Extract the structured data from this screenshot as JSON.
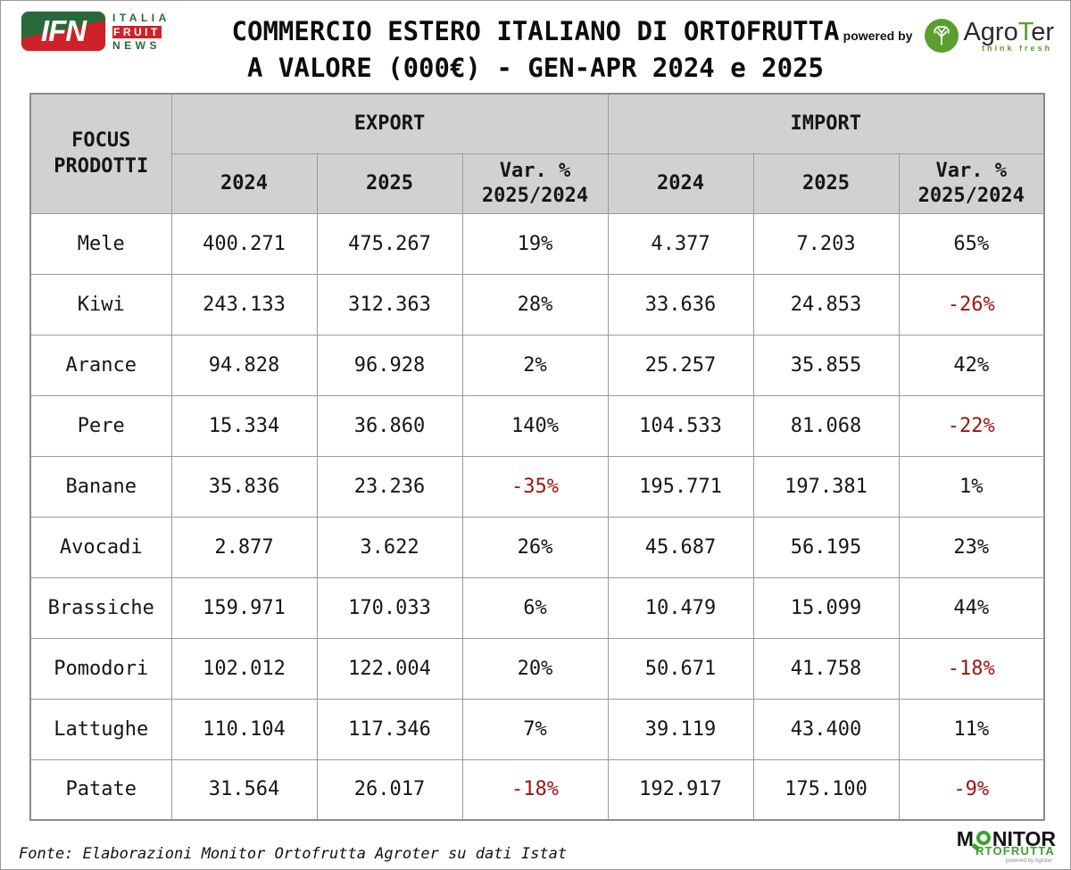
{
  "header": {
    "title_line1": "COMMERCIO ESTERO ITALIANO DI ORTOFRUTTA",
    "title_line2": "A VALORE (000€) - GEN-APR 2024 e 2025",
    "ifn_logo": {
      "acronym": "IFN",
      "word1": "ITALIA",
      "word2": "FRUIT",
      "word3": "NEWS"
    },
    "powered_by": "powered by",
    "agroter": {
      "name_pre": "Agro",
      "name_t": "T",
      "name_post": "er",
      "tagline": "think fresh",
      "tree_icon": "tree-icon"
    }
  },
  "colors": {
    "negative": "#9d1310",
    "header_bg": "#d3d0d0",
    "ifn_green": "#27693a",
    "ifn_red": "#cf2127",
    "agroter_green": "#5a9e2f",
    "monitor_green": "#3aa32b"
  },
  "table": {
    "corner_line1": "FOCUS",
    "corner_line2": "PRODOTTI",
    "group_export": "EXPORT",
    "group_import": "IMPORT",
    "sub": {
      "y2024": "2024",
      "y2025": "2025",
      "var_line1": "Var. %",
      "var_line2": "2025/2024"
    },
    "rows": [
      {
        "product": "Mele",
        "export": [
          "400.271",
          "475.267",
          "19%"
        ],
        "import": [
          "4.377",
          "7.203",
          "65%"
        ]
      },
      {
        "product": "Kiwi",
        "export": [
          "243.133",
          "312.363",
          "28%"
        ],
        "import": [
          "33.636",
          "24.853",
          "-26%"
        ]
      },
      {
        "product": "Arance",
        "export": [
          "94.828",
          "96.928",
          "2%"
        ],
        "import": [
          "25.257",
          "35.855",
          "42%"
        ]
      },
      {
        "product": "Pere",
        "export": [
          "15.334",
          "36.860",
          "140%"
        ],
        "import": [
          "104.533",
          "81.068",
          "-22%"
        ]
      },
      {
        "product": "Banane",
        "export": [
          "35.836",
          "23.236",
          "-35%"
        ],
        "import": [
          "195.771",
          "197.381",
          "1%"
        ]
      },
      {
        "product": "Avocadi",
        "export": [
          "2.877",
          "3.622",
          "26%"
        ],
        "import": [
          "45.687",
          "56.195",
          "23%"
        ]
      },
      {
        "product": "Brassiche",
        "export": [
          "159.971",
          "170.033",
          "6%"
        ],
        "import": [
          "10.479",
          "15.099",
          "44%"
        ]
      },
      {
        "product": "Pomodori",
        "export": [
          "102.012",
          "122.004",
          "20%"
        ],
        "import": [
          "50.671",
          "41.758",
          "-18%"
        ]
      },
      {
        "product": "Lattughe",
        "export": [
          "110.104",
          "117.346",
          "7%"
        ],
        "import": [
          "39.119",
          "43.400",
          "11%"
        ]
      },
      {
        "product": "Patate",
        "export": [
          "31.564",
          "26.017",
          "-18%"
        ],
        "import": [
          "192.917",
          "175.100",
          "-9%"
        ]
      }
    ]
  },
  "footer": {
    "source": "Fonte: Elaborazioni Monitor Ortofrutta Agroter su dati Istat",
    "monitor_logo": {
      "m": "M",
      "nitor": "NITOR",
      "line2": "RTOFRUTTA",
      "powered": "powered by Agroter",
      "icon": "magnifier-icon"
    }
  },
  "chart_data": {
    "type": "table",
    "title": "COMMERCIO ESTERO ITALIANO DI ORTOFRUTTA A VALORE (000€) - GEN-APR 2024 e 2025",
    "unit": "thousand EUR",
    "categories": [
      "Mele",
      "Kiwi",
      "Arance",
      "Pere",
      "Banane",
      "Avocadi",
      "Brassiche",
      "Pomodori",
      "Lattughe",
      "Patate"
    ],
    "series": [
      {
        "name": "Export 2024",
        "values": [
          400271,
          243133,
          94828,
          15334,
          35836,
          2877,
          159971,
          102012,
          110104,
          31564
        ]
      },
      {
        "name": "Export 2025",
        "values": [
          475267,
          312363,
          96928,
          36860,
          23236,
          3622,
          170033,
          122004,
          117346,
          26017
        ]
      },
      {
        "name": "Export Var % 2025/2024",
        "values": [
          19,
          28,
          2,
          140,
          -35,
          26,
          6,
          20,
          7,
          -18
        ]
      },
      {
        "name": "Import 2024",
        "values": [
          4377,
          33636,
          25257,
          104533,
          195771,
          45687,
          10479,
          50671,
          39119,
          192917
        ]
      },
      {
        "name": "Import 2025",
        "values": [
          7203,
          24853,
          35855,
          81068,
          197381,
          56195,
          15099,
          41758,
          43400,
          175100
        ]
      },
      {
        "name": "Import Var % 2025/2024",
        "values": [
          65,
          -26,
          42,
          -22,
          1,
          23,
          44,
          -18,
          11,
          -9
        ]
      }
    ],
    "source": "Fonte: Elaborazioni Monitor Ortofrutta Agroter su dati Istat",
    "negative_values_color": "#9d1310"
  }
}
